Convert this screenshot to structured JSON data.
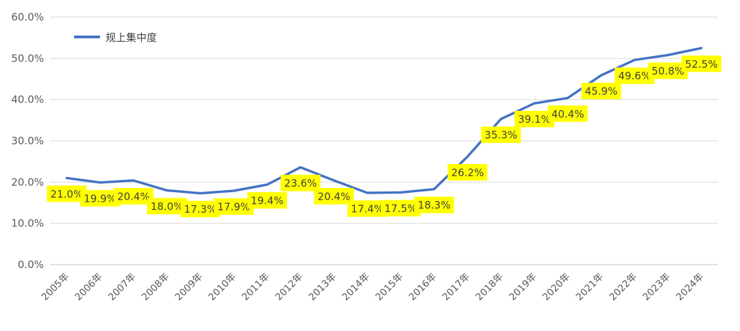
{
  "chart_data": {
    "type": "line",
    "title": "",
    "xlabel": "",
    "ylabel": "",
    "ylim": [
      0,
      60
    ],
    "y_ticks": [
      "0.0%",
      "10.0%",
      "20.0%",
      "30.0%",
      "40.0%",
      "50.0%",
      "60.0%"
    ],
    "grid": "horizontal",
    "legend_position": "top-left",
    "categories": [
      "2005年",
      "2006年",
      "2007年",
      "2008年",
      "2009年",
      "2010年",
      "2011年",
      "2012年",
      "2013年",
      "2014年",
      "2015年",
      "2016年",
      "2017年",
      "2018年",
      "2019年",
      "2020年",
      "2021年",
      "2022年",
      "2023年",
      "2024年"
    ],
    "series": [
      {
        "name": "规上集中度",
        "color": "#4472C4",
        "values": [
          21.0,
          19.9,
          20.4,
          18.0,
          17.3,
          17.9,
          19.4,
          23.6,
          20.4,
          17.4,
          17.5,
          18.3,
          26.2,
          35.3,
          39.1,
          40.4,
          45.9,
          49.6,
          50.8,
          52.5
        ],
        "labels": [
          "21.0%",
          "19.9%",
          "20.4%",
          "18.0%",
          "17.3%",
          "17.9%",
          "19.4%",
          "23.6%",
          "20.4%",
          "17.4%",
          "17.5%",
          "18.3%",
          "26.2%",
          "35.3%",
          "39.1%",
          "40.4%",
          "45.9%",
          "49.6%",
          "50.8%",
          "52.5%"
        ]
      }
    ],
    "label_highlight_color": "#FFFF00"
  }
}
